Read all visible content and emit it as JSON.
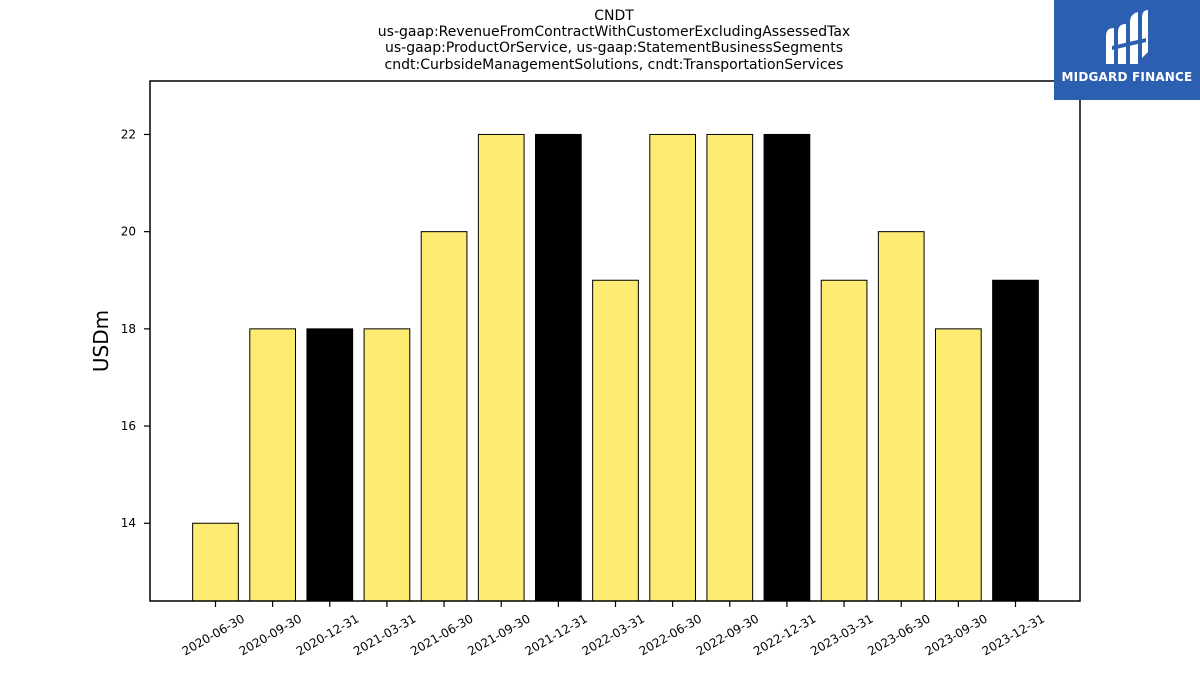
{
  "brand": {
    "name": "MIDGARD FINANCE",
    "background_color": "#2d5fb0",
    "icon": "midgard-logo-icon"
  },
  "chart_data": {
    "type": "bar",
    "title_lines": [
      "CNDT",
      "us-gaap:RevenueFromContractWithCustomerExcludingAssessedTax",
      "us-gaap:ProductOrService, us-gaap:StatementBusinessSegments",
      "cndt:CurbsideManagementSolutions, cndt:TransportationServices"
    ],
    "xlabel": "",
    "ylabel": "USDm",
    "categories": [
      "2020-06-30",
      "2020-09-30",
      "2020-12-31",
      "2021-03-31",
      "2021-06-30",
      "2021-09-30",
      "2021-12-31",
      "2022-03-31",
      "2022-06-30",
      "2022-09-30",
      "2022-12-31",
      "2023-03-31",
      "2023-06-30",
      "2023-09-30",
      "2023-12-31"
    ],
    "values": [
      14,
      18,
      18,
      18,
      20,
      22,
      22,
      19,
      22,
      22,
      22,
      19,
      20,
      18,
      19
    ],
    "bar_colors": [
      "#fdeb72",
      "#fdeb72",
      "#000000",
      "#fdeb72",
      "#fdeb72",
      "#fdeb72",
      "#000000",
      "#fdeb72",
      "#fdeb72",
      "#fdeb72",
      "#000000",
      "#fdeb72",
      "#fdeb72",
      "#fdeb72",
      "#000000"
    ],
    "yticks": [
      14,
      16,
      18,
      20,
      22
    ],
    "ylim": [
      12.4,
      23.1
    ],
    "grid": false,
    "legend": "none"
  }
}
